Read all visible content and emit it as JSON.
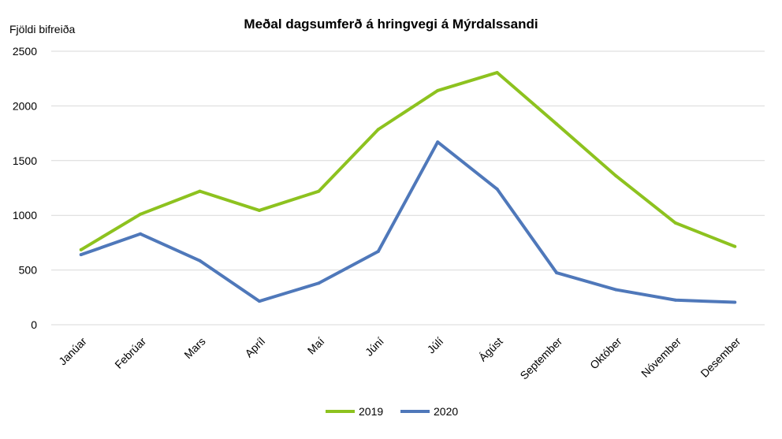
{
  "chart_data": {
    "type": "line",
    "title": "Meðal dagsumferð á hringvegi á Mýrdalssandi",
    "ylabel": "Fjöldi bifreiða",
    "xlabel": "",
    "categories": [
      "Janúar",
      "Febrúar",
      "Mars",
      "Apríl",
      "Maí",
      "Júní",
      "Júlí",
      "Ágúst",
      "September",
      "Október",
      "Nóvember",
      "Desember"
    ],
    "ylim": [
      0,
      2500
    ],
    "yticks": [
      0,
      500,
      1000,
      1500,
      2000,
      2500
    ],
    "grid": true,
    "legend": "bottom",
    "series": [
      {
        "name": "2019",
        "color": "#8DC21F",
        "values": [
          685,
          1010,
          1220,
          1045,
          1220,
          1785,
          2140,
          2305,
          1835,
          1360,
          930,
          715
        ]
      },
      {
        "name": "2020",
        "color": "#4F78BA",
        "values": [
          640,
          830,
          585,
          215,
          380,
          670,
          1670,
          1240,
          475,
          320,
          225,
          205
        ]
      }
    ]
  }
}
